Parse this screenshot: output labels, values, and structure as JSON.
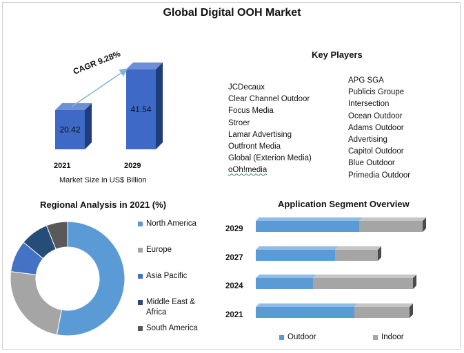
{
  "title": "Global Digital OOH Market",
  "market_size": {
    "cagr_label": "CAGR 9.28%",
    "axis_note": "Market Size in US$ Billion",
    "bars": [
      {
        "year": "2021",
        "value": 20.42,
        "label": "20.42"
      },
      {
        "year": "2029",
        "value": 41.54,
        "label": "41.54"
      }
    ]
  },
  "key_players": {
    "title": "Key Players",
    "col1": [
      "JCDecaux",
      "Clear Channel Outdoor",
      "Focus Media",
      "Stroer",
      "Lamar Advertising",
      "Outfront Media",
      "Global (Exterion Media)",
      "oOh!media"
    ],
    "col2": [
      "APG SGA",
      "Publicis Groupe",
      "Intersection",
      "Ocean Outdoor",
      "Adams Outdoor",
      "Advertising",
      "Capitol Outdoor",
      "Blue Outdoor",
      "Primedia Outdoor"
    ]
  },
  "regional": {
    "title": "Regional Analysis in 2021 (%)",
    "legend": [
      {
        "label": "North America",
        "color": "#5b9bd5"
      },
      {
        "label": "Europe",
        "color": "#a5a5a5"
      },
      {
        "label": "Asia Pacific",
        "color": "#4472c4"
      },
      {
        "label": "Middle East & Africa",
        "color": "#264d78"
      },
      {
        "label": "South America",
        "color": "#595959"
      }
    ]
  },
  "application": {
    "title": "Application Segment Overview",
    "legend_outdoor": "Outdoor",
    "legend_indoor": "Indoor",
    "colors": {
      "outdoor": "#5b9bd5",
      "indoor": "#a5a5a5"
    }
  },
  "chart_data": [
    {
      "type": "bar",
      "categories": [
        "2021",
        "2029"
      ],
      "values": [
        20.42,
        41.54
      ],
      "title": "",
      "xlabel": "Market Size in US$ Billion",
      "ylabel": "",
      "annotations": [
        "CAGR 9.28%"
      ]
    },
    {
      "type": "pie",
      "title": "Regional Analysis in 2021 (%)",
      "labels": [
        "North America",
        "Europe",
        "Asia Pacific",
        "Middle East & Africa",
        "South America"
      ],
      "values": [
        53,
        24,
        9,
        8,
        6
      ]
    },
    {
      "type": "bar",
      "orientation": "horizontal",
      "stacked": true,
      "title": "Application Segment Overview",
      "categories": [
        "2029",
        "2027",
        "2024",
        "2021"
      ],
      "series": [
        {
          "name": "Outdoor",
          "values": [
            150,
            115,
            83,
            143
          ]
        },
        {
          "name": "Indoor",
          "values": [
            92,
            62,
            145,
            80
          ]
        }
      ]
    }
  ]
}
